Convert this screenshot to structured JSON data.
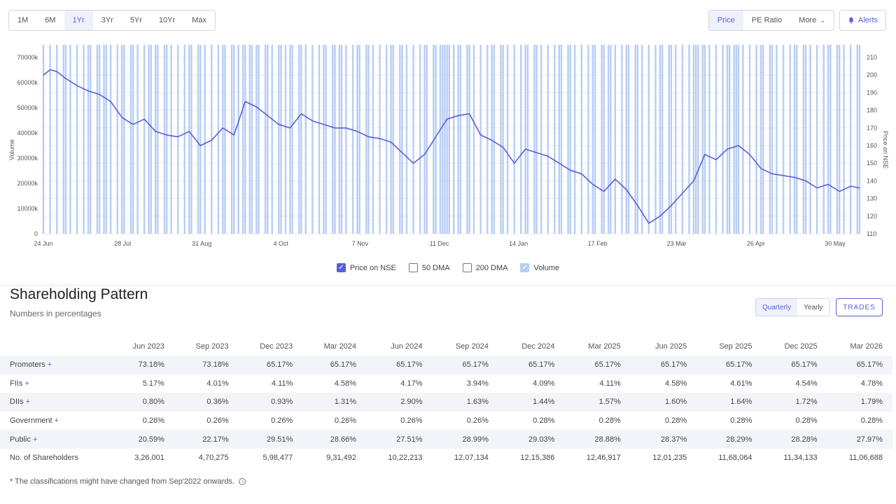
{
  "range_buttons": [
    "1M",
    "6M",
    "1Yr",
    "3Yr",
    "5Yr",
    "10Yr",
    "Max"
  ],
  "view_buttons": {
    "price": "Price",
    "pe": "PE Ratio",
    "more": "More"
  },
  "alerts_label": "Alerts",
  "colors": {
    "accent": "#5a5fd6",
    "volume": "#b7cdf3"
  },
  "legend": {
    "price": "Price on NSE",
    "dma50": "50 DMA",
    "dma200": "200 DMA",
    "volume": "Volume"
  },
  "chart_data": {
    "type": "line",
    "ylabel_left": "Volume",
    "ylabel_right": "Price on NSE",
    "y_left_ticks": [
      "0",
      "10000k",
      "20000k",
      "30000k",
      "40000k",
      "50000k",
      "60000k",
      "70000k"
    ],
    "y_left_range": [
      0,
      70000
    ],
    "y_right_ticks": [
      "110",
      "120",
      "130",
      "140",
      "150",
      "160",
      "170",
      "180",
      "190",
      "200",
      "210"
    ],
    "y_right_range": [
      110,
      210
    ],
    "x_ticks": [
      "24 Jun",
      "28 Jul",
      "31 Aug",
      "4 Oct",
      "7 Nov",
      "11 Dec",
      "14 Jan",
      "17 Feb",
      "23 Mar",
      "26 Apr",
      "30 May"
    ],
    "grid": true,
    "series": [
      {
        "name": "Price on NSE",
        "values": [
          [
            0,
            200
          ],
          [
            3,
            203
          ],
          [
            6,
            202
          ],
          [
            10,
            198
          ],
          [
            15,
            194
          ],
          [
            20,
            191
          ],
          [
            25,
            189
          ],
          [
            30,
            185
          ],
          [
            35,
            176
          ],
          [
            40,
            172
          ],
          [
            45,
            175
          ],
          [
            50,
            168
          ],
          [
            55,
            166
          ],
          [
            60,
            165
          ],
          [
            65,
            168
          ],
          [
            70,
            160
          ],
          [
            75,
            163
          ],
          [
            80,
            170
          ],
          [
            85,
            166
          ],
          [
            90,
            185
          ],
          [
            95,
            182
          ],
          [
            100,
            177
          ],
          [
            105,
            172
          ],
          [
            110,
            170
          ],
          [
            115,
            178
          ],
          [
            120,
            174
          ],
          [
            125,
            172
          ],
          [
            130,
            170
          ],
          [
            135,
            170
          ],
          [
            140,
            168
          ],
          [
            145,
            165
          ],
          [
            150,
            164
          ],
          [
            155,
            162
          ],
          [
            160,
            156
          ],
          [
            165,
            150
          ],
          [
            170,
            155
          ],
          [
            175,
            165
          ],
          [
            180,
            175
          ],
          [
            185,
            177
          ],
          [
            190,
            178
          ],
          [
            195,
            166
          ],
          [
            200,
            163
          ],
          [
            205,
            159
          ],
          [
            210,
            150
          ],
          [
            215,
            158
          ],
          [
            220,
            156
          ],
          [
            225,
            154
          ],
          [
            230,
            150
          ],
          [
            235,
            146
          ],
          [
            240,
            144
          ],
          [
            245,
            138
          ],
          [
            250,
            134
          ],
          [
            255,
            141
          ],
          [
            260,
            135
          ],
          [
            265,
            126
          ],
          [
            270,
            116
          ],
          [
            275,
            120
          ],
          [
            280,
            126
          ],
          [
            285,
            133
          ],
          [
            290,
            140
          ],
          [
            295,
            155
          ],
          [
            300,
            152
          ],
          [
            305,
            158
          ],
          [
            310,
            160
          ],
          [
            315,
            155
          ],
          [
            320,
            147
          ],
          [
            325,
            144
          ],
          [
            330,
            143
          ],
          [
            335,
            142
          ],
          [
            340,
            140
          ],
          [
            345,
            136
          ],
          [
            350,
            138
          ],
          [
            355,
            134
          ],
          [
            360,
            137
          ],
          [
            364,
            136
          ]
        ]
      },
      {
        "name": "Volume",
        "values": [
          [
            0,
            8
          ],
          [
            3,
            6
          ],
          [
            6,
            5
          ],
          [
            10,
            4
          ],
          [
            15,
            4
          ],
          [
            20,
            4
          ],
          [
            25,
            3
          ],
          [
            28,
            15
          ],
          [
            30,
            4
          ],
          [
            35,
            3
          ],
          [
            40,
            3
          ],
          [
            45,
            4
          ],
          [
            47,
            7
          ],
          [
            50,
            4
          ],
          [
            55,
            3
          ],
          [
            60,
            3
          ],
          [
            65,
            3
          ],
          [
            70,
            10
          ],
          [
            75,
            4
          ],
          [
            80,
            3
          ],
          [
            85,
            4
          ],
          [
            87,
            28
          ],
          [
            89,
            12
          ],
          [
            92,
            4
          ],
          [
            95,
            3
          ],
          [
            100,
            3
          ],
          [
            105,
            3
          ],
          [
            106,
            12
          ],
          [
            110,
            4
          ],
          [
            115,
            3
          ],
          [
            120,
            3
          ],
          [
            125,
            3
          ],
          [
            130,
            4
          ],
          [
            133,
            14
          ],
          [
            135,
            3
          ],
          [
            140,
            3
          ],
          [
            145,
            3
          ],
          [
            150,
            3
          ],
          [
            155,
            3
          ],
          [
            160,
            3
          ],
          [
            165,
            13
          ],
          [
            170,
            3
          ],
          [
            175,
            8
          ],
          [
            177,
            62
          ],
          [
            178,
            12
          ],
          [
            179,
            54
          ],
          [
            181,
            6
          ],
          [
            183,
            14
          ],
          [
            185,
            6
          ],
          [
            190,
            5
          ],
          [
            195,
            5
          ],
          [
            200,
            5
          ],
          [
            205,
            5
          ],
          [
            210,
            5
          ],
          [
            215,
            5
          ],
          [
            220,
            5
          ],
          [
            225,
            4
          ],
          [
            230,
            3
          ],
          [
            235,
            3
          ],
          [
            240,
            3
          ],
          [
            245,
            3
          ],
          [
            250,
            3
          ],
          [
            253,
            70
          ],
          [
            255,
            4
          ],
          [
            260,
            4
          ],
          [
            265,
            5
          ],
          [
            270,
            6
          ],
          [
            275,
            6
          ],
          [
            280,
            5
          ],
          [
            285,
            5
          ],
          [
            290,
            6
          ],
          [
            292,
            44
          ],
          [
            295,
            7
          ],
          [
            300,
            6
          ],
          [
            305,
            4
          ],
          [
            308,
            17
          ],
          [
            310,
            7
          ],
          [
            315,
            4
          ],
          [
            320,
            3
          ],
          [
            325,
            3
          ],
          [
            330,
            3
          ],
          [
            335,
            3
          ],
          [
            340,
            3
          ],
          [
            345,
            3
          ],
          [
            350,
            3
          ],
          [
            355,
            3
          ],
          [
            360,
            3
          ],
          [
            364,
            3
          ]
        ]
      }
    ]
  },
  "shareholding": {
    "title": "Shareholding Pattern",
    "subtitle": "Numbers in percentages",
    "toggle": {
      "quarterly": "Quarterly",
      "yearly": "Yearly"
    },
    "trades_label": "TRADES",
    "columns": [
      "Jun 2023",
      "Sep 2023",
      "Dec 2023",
      "Mar 2024",
      "Jun 2024",
      "Sep 2024",
      "Dec 2024",
      "Mar 2025",
      "Jun 2025",
      "Sep 2025",
      "Dec 2025",
      "Mar 2026"
    ],
    "rows": [
      {
        "label": "Promoters",
        "plus": "+",
        "values": [
          "73.18%",
          "73.18%",
          "65.17%",
          "65.17%",
          "65.17%",
          "65.17%",
          "65.17%",
          "65.17%",
          "65.17%",
          "65.17%",
          "65.17%",
          "65.17%"
        ]
      },
      {
        "label": "FIIs",
        "plus": "+",
        "values": [
          "5.17%",
          "4.01%",
          "4.11%",
          "4.58%",
          "4.17%",
          "3.94%",
          "4.09%",
          "4.11%",
          "4.58%",
          "4.61%",
          "4.54%",
          "4.78%"
        ]
      },
      {
        "label": "DIIs",
        "plus": "+",
        "values": [
          "0.80%",
          "0.36%",
          "0.93%",
          "1.31%",
          "2.90%",
          "1.63%",
          "1.44%",
          "1.57%",
          "1.60%",
          "1.64%",
          "1.72%",
          "1.79%"
        ]
      },
      {
        "label": "Government",
        "plus": "+",
        "values": [
          "0.26%",
          "0.26%",
          "0.26%",
          "0.26%",
          "0.26%",
          "0.26%",
          "0.28%",
          "0.28%",
          "0.28%",
          "0.28%",
          "0.28%",
          "0.28%"
        ]
      },
      {
        "label": "Public",
        "plus": "+",
        "values": [
          "20.59%",
          "22.17%",
          "29.51%",
          "28.66%",
          "27.51%",
          "28.99%",
          "29.03%",
          "28.88%",
          "28.37%",
          "28.29%",
          "28.28%",
          "27.97%"
        ]
      },
      {
        "label": "No. of Shareholders",
        "plus": "",
        "values": [
          "3,26,001",
          "4,70,275",
          "5,98,477",
          "9,31,492",
          "10,22,213",
          "12,07,134",
          "12,15,386",
          "12,46,917",
          "12,01,235",
          "11,68,064",
          "11,34,133",
          "11,06,688"
        ]
      }
    ],
    "footnote": "* The classifications might have changed from Sep'2022 onwards."
  }
}
